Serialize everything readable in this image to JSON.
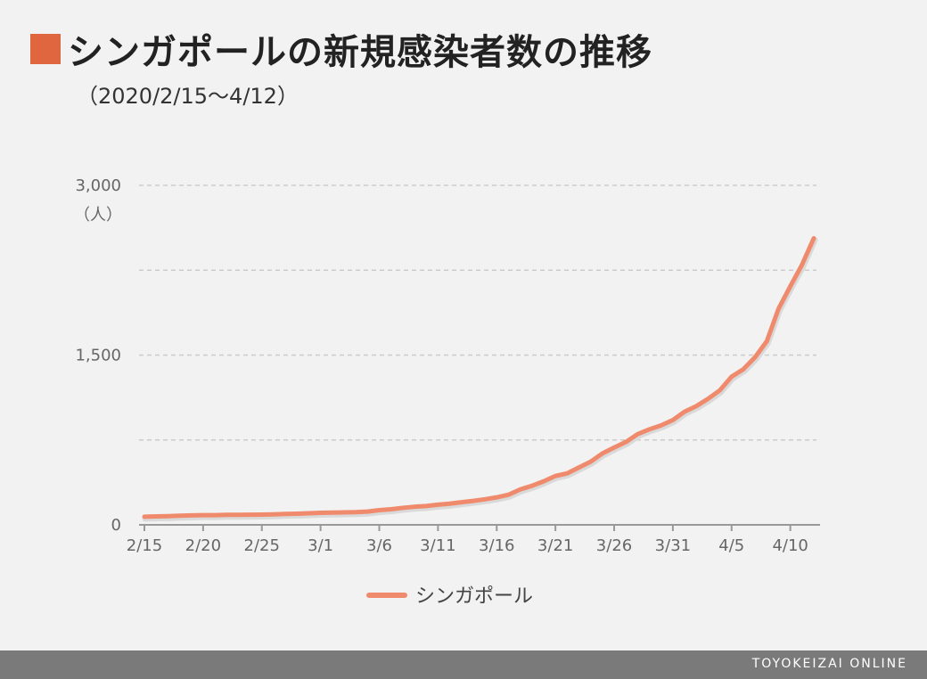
{
  "title": "シンガポールの新規感染者数の推移",
  "subtitle": "（2020/2/15～4/12）",
  "footer": "TOYOKEIZAI ONLINE",
  "colors": {
    "accent": "#e0663f",
    "series": "#f08a6c",
    "grid": "#cccccc",
    "axis": "#999999",
    "text": "#666666"
  },
  "chart_data": {
    "type": "line",
    "ylabel": "（人）",
    "ylim": [
      0,
      3000
    ],
    "y_ticks": [
      {
        "value": 0,
        "label": "0"
      },
      {
        "value": 1500,
        "label": "1,500"
      },
      {
        "value": 3000,
        "label": "3,000"
      }
    ],
    "y_gridlines": [
      750,
      1500,
      2250,
      3000
    ],
    "x_ticks": [
      "2/15",
      "2/20",
      "2/25",
      "3/1",
      "3/6",
      "3/11",
      "3/16",
      "3/21",
      "3/26",
      "3/31",
      "4/5",
      "4/10"
    ],
    "x_tick_index": [
      0,
      5,
      10,
      15,
      20,
      25,
      30,
      35,
      40,
      45,
      50,
      55
    ],
    "grid": true,
    "legend_position": "bottom-center",
    "series": [
      {
        "name": "シンガポール",
        "x": [
          "2/15",
          "2/16",
          "2/17",
          "2/18",
          "2/19",
          "2/20",
          "2/21",
          "2/22",
          "2/23",
          "2/24",
          "2/25",
          "2/26",
          "2/27",
          "2/28",
          "2/29",
          "3/1",
          "3/2",
          "3/3",
          "3/4",
          "3/5",
          "3/6",
          "3/7",
          "3/8",
          "3/9",
          "3/10",
          "3/11",
          "3/12",
          "3/13",
          "3/14",
          "3/15",
          "3/16",
          "3/17",
          "3/18",
          "3/19",
          "3/20",
          "3/21",
          "3/22",
          "3/23",
          "3/24",
          "3/25",
          "3/26",
          "3/27",
          "3/28",
          "3/29",
          "3/30",
          "3/31",
          "4/1",
          "4/2",
          "4/3",
          "4/4",
          "4/5",
          "4/6",
          "4/7",
          "4/8",
          "4/9",
          "4/10",
          "4/11",
          "4/12"
        ],
        "values": [
          72,
          75,
          77,
          81,
          84,
          86,
          86,
          89,
          89,
          90,
          91,
          93,
          96,
          98,
          102,
          106,
          108,
          110,
          112,
          117,
          130,
          138,
          150,
          160,
          166,
          178,
          187,
          200,
          212,
          226,
          243,
          266,
          313,
          345,
          385,
          432,
          455,
          507,
          558,
          631,
          683,
          732,
          802,
          844,
          879,
          926,
          1000,
          1049,
          1114,
          1189,
          1309,
          1375,
          1481,
          1623,
          1910,
          2108,
          2299,
          2532
        ]
      }
    ]
  }
}
